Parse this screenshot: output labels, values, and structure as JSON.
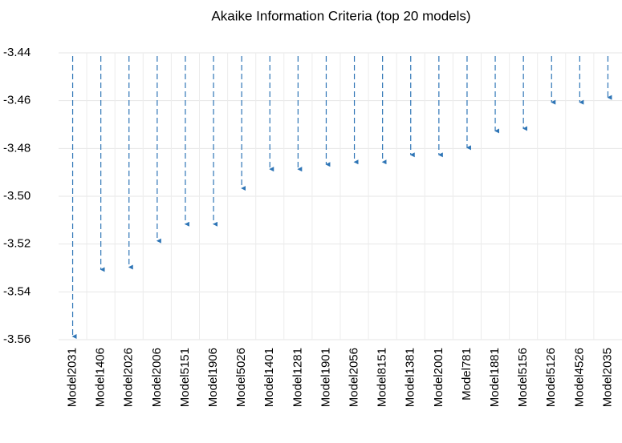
{
  "chart_data": {
    "type": "drop-arrow",
    "title": "Akaike Information Criteria (top 20 models)",
    "categories": [
      "Model2031",
      "Model1406",
      "Model2026",
      "Model2006",
      "Model5151",
      "Model1906",
      "Model5026",
      "Model1401",
      "Model1281",
      "Model1901",
      "Model2056",
      "Model8151",
      "Model1381",
      "Model2001",
      "Model781",
      "Model1881",
      "Model5156",
      "Model5126",
      "Model4526",
      "Model2035"
    ],
    "values": [
      -3.559,
      -3.531,
      -3.53,
      -3.519,
      -3.512,
      -3.512,
      -3.497,
      -3.489,
      -3.489,
      -3.487,
      -3.486,
      -3.486,
      -3.483,
      -3.483,
      -3.48,
      -3.473,
      -3.472,
      -3.461,
      -3.461,
      -3.459
    ],
    "color": "#2e75b6",
    "ylim": [
      -3.56,
      -3.44
    ],
    "yticks": [
      -3.44,
      -3.46,
      -3.48,
      {
        "value": -3.5,
        "label": "-3.50"
      },
      -3.52,
      -3.54,
      -3.56
    ],
    "grid": true
  }
}
